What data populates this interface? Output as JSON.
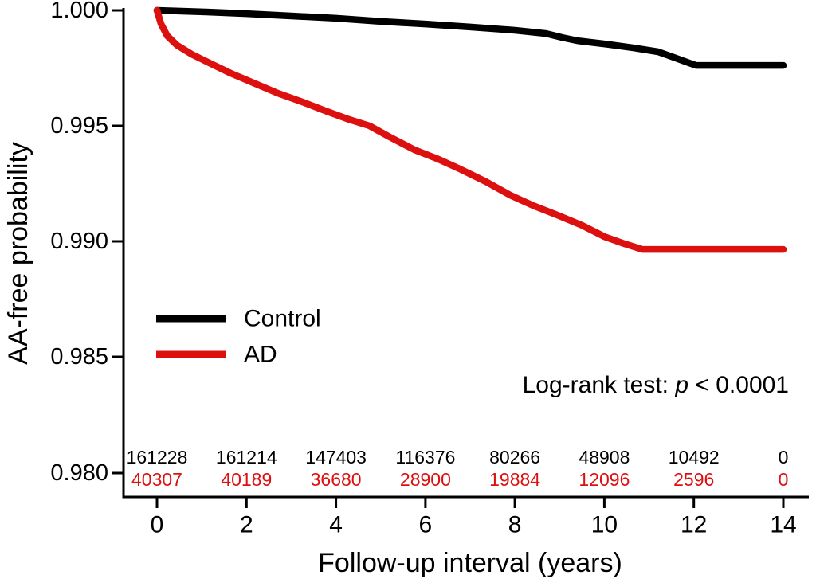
{
  "chart_data": {
    "type": "line",
    "subtype": "kaplan-meier-survival",
    "title": "",
    "xlabel": "Follow-up interval (years)",
    "ylabel": "AA-free probability",
    "xlim": [
      0,
      14
    ],
    "ylim": [
      0.979,
      1.0
    ],
    "grid": false,
    "legend_position": "inside-left-middle",
    "x_tick_labels": [
      "0",
      "2",
      "4",
      "6",
      "8",
      "10",
      "12",
      "14"
    ],
    "y_tick_labels": [
      "1.000",
      "0.995",
      "0.990",
      "0.985",
      "0.980"
    ],
    "y_tick_values": [
      1.0,
      0.995,
      0.99,
      0.985,
      0.98
    ],
    "series": [
      {
        "name": "Control",
        "color": "#000000",
        "points": [
          [
            0.0,
            1.0
          ],
          [
            1.1,
            0.99993
          ],
          [
            2.0,
            0.99986
          ],
          [
            3.0,
            0.99976
          ],
          [
            4.0,
            0.99966
          ],
          [
            5.0,
            0.99952
          ],
          [
            6.0,
            0.99941
          ],
          [
            7.0,
            0.99928
          ],
          [
            8.0,
            0.99914
          ],
          [
            8.7,
            0.999
          ],
          [
            9.05,
            0.99883
          ],
          [
            9.4,
            0.99869
          ],
          [
            10.0,
            0.99855
          ],
          [
            10.65,
            0.99838
          ],
          [
            11.2,
            0.99821
          ],
          [
            11.55,
            0.99797
          ],
          [
            11.85,
            0.99776
          ],
          [
            12.05,
            0.99762
          ],
          [
            14.0,
            0.99762
          ]
        ]
      },
      {
        "name": "AD",
        "color": "#dd1010",
        "points": [
          [
            0.0,
            1.0
          ],
          [
            0.09,
            0.99941
          ],
          [
            0.23,
            0.9989
          ],
          [
            0.45,
            0.99849
          ],
          [
            0.77,
            0.99811
          ],
          [
            1.2,
            0.9977
          ],
          [
            1.65,
            0.99728
          ],
          [
            2.2,
            0.99683
          ],
          [
            2.7,
            0.99642
          ],
          [
            3.25,
            0.99604
          ],
          [
            3.8,
            0.99563
          ],
          [
            4.3,
            0.99528
          ],
          [
            4.75,
            0.99501
          ],
          [
            5.2,
            0.99453
          ],
          [
            5.75,
            0.99398
          ],
          [
            6.3,
            0.99356
          ],
          [
            6.8,
            0.99312
          ],
          [
            7.35,
            0.9926
          ],
          [
            7.9,
            0.99201
          ],
          [
            8.4,
            0.99157
          ],
          [
            8.95,
            0.99115
          ],
          [
            9.5,
            0.99071
          ],
          [
            10.0,
            0.99022
          ],
          [
            10.45,
            0.98991
          ],
          [
            10.85,
            0.98967
          ],
          [
            14.0,
            0.98967
          ]
        ]
      }
    ],
    "annotation": {
      "prefix": "Log-rank test: ",
      "p_symbol": "p",
      "suffix": " < 0.0001"
    },
    "risk_table": {
      "control": [
        "161228",
        "161214",
        "147403",
        "116376",
        "80266",
        "48908",
        "10492",
        "0"
      ],
      "ad": [
        "40307",
        "40189",
        "36680",
        "28900",
        "19884",
        "12096",
        "2596",
        "0"
      ]
    }
  }
}
